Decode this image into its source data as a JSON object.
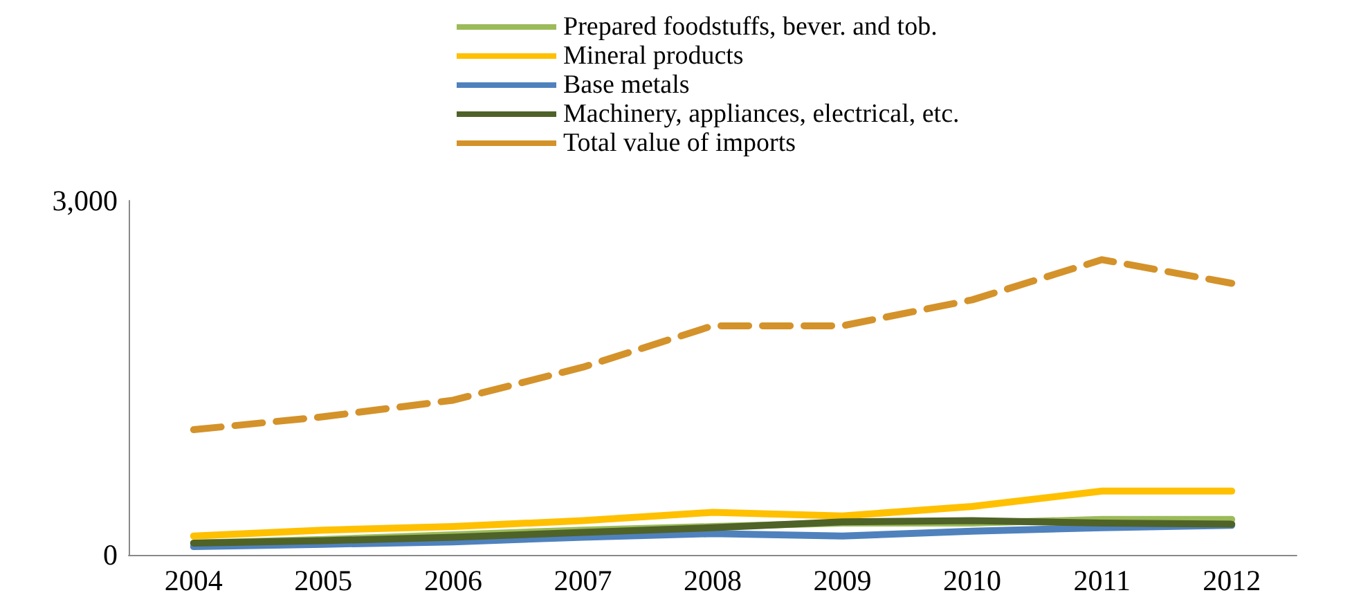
{
  "chart_data": {
    "type": "line",
    "categories": [
      "2004",
      "2005",
      "2006",
      "2007",
      "2008",
      "2009",
      "2010",
      "2011",
      "2012"
    ],
    "series": [
      {
        "name": "Prepared foodstuffs, bever. and tob.",
        "color": "#9bbb59",
        "values": [
          100,
          130,
          170,
          210,
          240,
          270,
          270,
          300,
          300
        ]
      },
      {
        "name": "Mineral products",
        "color": "#ffc000",
        "values": [
          160,
          210,
          240,
          290,
          360,
          330,
          410,
          540,
          540
        ]
      },
      {
        "name": "Base metals",
        "color": "#4f81bd",
        "values": [
          70,
          90,
          110,
          150,
          180,
          160,
          200,
          230,
          250
        ]
      },
      {
        "name": "Machinery, appliances, electrical, etc.",
        "color": "#4f6228",
        "values": [
          100,
          120,
          150,
          190,
          230,
          280,
          290,
          270,
          260
        ]
      },
      {
        "name": "Total value of imports",
        "color": "#d4922a",
        "line_style": "dashed",
        "values": [
          1060,
          1170,
          1310,
          1590,
          1940,
          1940,
          2160,
          2500,
          2300
        ]
      }
    ],
    "ylim": [
      0,
      3000
    ],
    "yticks": [
      0,
      {
        "value": 3000,
        "label": "3,000"
      }
    ],
    "grid": false,
    "legend": "top",
    "marker": "none"
  }
}
